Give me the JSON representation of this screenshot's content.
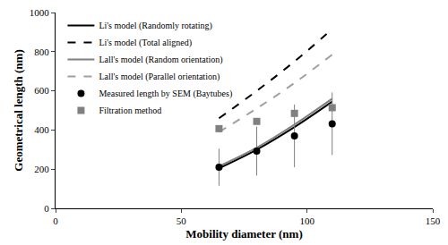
{
  "chart_data": {
    "type": "scatter",
    "x_label": "Mobility diameter (nm)",
    "y_label": "Geometrical length (nm)",
    "xlim": [
      0,
      150
    ],
    "xticks": [
      0,
      50,
      100,
      150
    ],
    "ylim": [
      0,
      1000
    ],
    "yticks": [
      0,
      200,
      400,
      600,
      800,
      1000
    ],
    "grid": false,
    "legend": "upper left",
    "series": [
      {
        "name": "Li's model (Randomly rotating)",
        "type": "line",
        "color": "#000000",
        "line_style": "solid",
        "x": [
          65,
          80,
          95,
          110
        ],
        "values": [
          205,
          300,
          415,
          545
        ]
      },
      {
        "name": "Li's model (Total aligned)",
        "type": "line",
        "color": "#000000",
        "line_style": "dash",
        "x": [
          65,
          80,
          95,
          110
        ],
        "values": [
          460,
          600,
          750,
          915
        ]
      },
      {
        "name": "Lall's model (Random orientation)",
        "type": "line",
        "color": "#808080",
        "line_style": "solid",
        "x": [
          65,
          80,
          95,
          110
        ],
        "values": [
          215,
          310,
          428,
          560
        ]
      },
      {
        "name": "Lall's model (Parallel orientation)",
        "type": "line",
        "color": "#a0a0a0",
        "line_style": "dash",
        "x": [
          65,
          80,
          95,
          110
        ],
        "values": [
          390,
          510,
          640,
          785
        ]
      },
      {
        "name": "Measured length by SEM (Baytubes)",
        "type": "scatter",
        "color": "#000000",
        "marker": "circle",
        "x": [
          65,
          80,
          95,
          110
        ],
        "values": [
          210,
          292,
          370,
          432
        ],
        "error": [
          95,
          125,
          160,
          160
        ]
      },
      {
        "name": "Filtration method",
        "type": "scatter",
        "color": "#808080",
        "marker": "square",
        "x": [
          65,
          80,
          95,
          110
        ],
        "values": [
          407,
          444,
          485,
          514
        ]
      }
    ]
  }
}
